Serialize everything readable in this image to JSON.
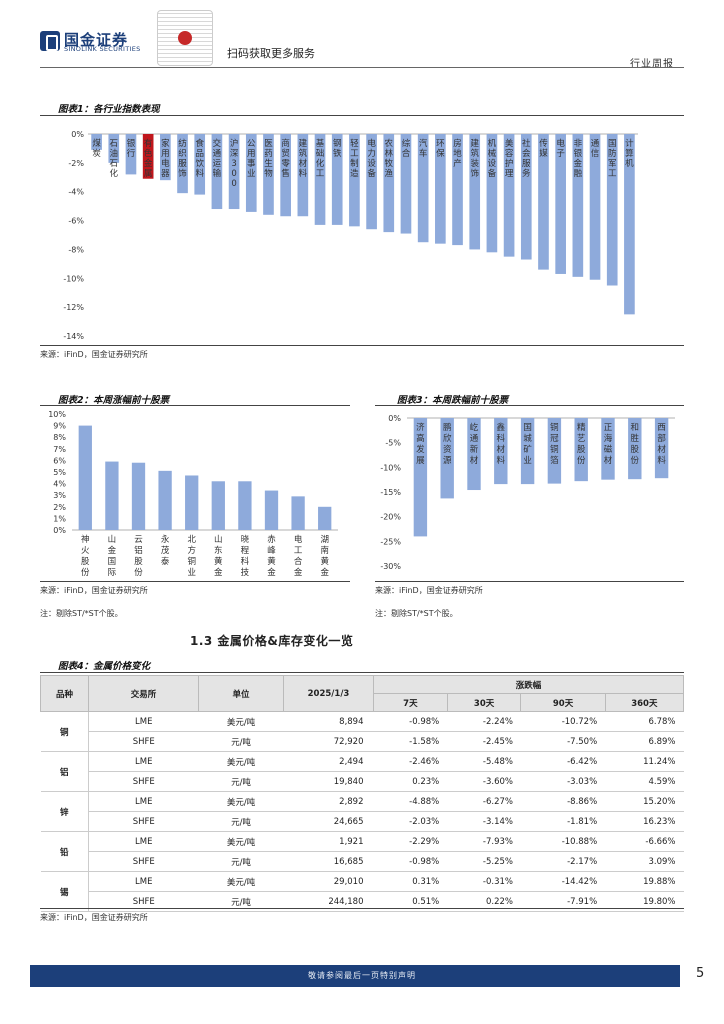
{
  "header": {
    "logo_cn": "国金证券",
    "logo_en": "SINOLINK SECURITIES",
    "qr_caption": "扫码获取更多服务",
    "doc_type": "行业周报"
  },
  "fig1": {
    "title": "图表1：各行业指数表现",
    "source": "来源：iFinD，国金证券研究所",
    "highlight_color": "#c0161c",
    "bar_color": "#8eaadb",
    "chart_data": {
      "type": "bar",
      "categories": [
        "煤炭",
        "石油石化",
        "银行",
        "有色金属",
        "家用电器",
        "纺织服饰",
        "食品饮料",
        "交通运输",
        "沪深300",
        "公用事业",
        "医药生物",
        "商贸零售",
        "建筑材料",
        "基础化工",
        "钢铁",
        "轻工制造",
        "电力设备",
        "农林牧渔",
        "综合",
        "汽车",
        "环保",
        "房地产",
        "建筑装饰",
        "机械设备",
        "美容护理",
        "社会服务",
        "传媒",
        "电子",
        "非银金融",
        "通信",
        "国防军工",
        "计算机"
      ],
      "values": [
        -1.1,
        -2.0,
        -2.8,
        -3.1,
        -3.2,
        -4.1,
        -4.2,
        -5.2,
        -5.2,
        -5.4,
        -5.6,
        -5.7,
        -5.7,
        -6.3,
        -6.3,
        -6.4,
        -6.6,
        -6.8,
        -6.9,
        -7.5,
        -7.6,
        -7.7,
        -8.0,
        -8.2,
        -8.5,
        -8.7,
        -9.4,
        -9.7,
        -9.9,
        -10.1,
        -10.5,
        -12.5
      ],
      "highlight_index": 3,
      "yticks": [
        "0%",
        "-2%",
        "-4%",
        "-6%",
        "-8%",
        "-10%",
        "-12%",
        "-14%"
      ],
      "ylim": [
        -14,
        0
      ]
    }
  },
  "fig2": {
    "title": "图表2：本周涨幅前十股票",
    "source": "来源：iFinD，国金证券研究所",
    "note": "注：剔除ST/*ST个股。",
    "chart_data": {
      "type": "bar",
      "categories": [
        "神火股份",
        "山金国际",
        "云铝股份",
        "永茂泰",
        "北方铜业",
        "山东黄金",
        "晓程科技",
        "赤峰黄金",
        "电工合金",
        "湖南黄金"
      ],
      "values": [
        9.0,
        5.9,
        5.8,
        5.1,
        4.7,
        4.2,
        4.2,
        3.4,
        2.9,
        2.0
      ],
      "yticks": [
        "10%",
        "9%",
        "8%",
        "7%",
        "6%",
        "5%",
        "4%",
        "3%",
        "2%",
        "1%",
        "0%"
      ],
      "ylim": [
        0,
        10
      ]
    }
  },
  "fig3": {
    "title": "图表3：本周跌幅前十股票",
    "source": "来源：iFinD，国金证券研究所",
    "note": "注：剔除ST/*ST个股。",
    "chart_data": {
      "type": "bar",
      "categories": [
        "济高发展",
        "鹏欣资源",
        "屹通新材",
        "鑫科材料",
        "国城矿业",
        "铜冠铜箔",
        "精艺股份",
        "正海磁材",
        "和胜股份",
        "西部材料"
      ],
      "values": [
        -24.0,
        -16.3,
        -14.6,
        -13.4,
        -13.4,
        -13.3,
        -12.8,
        -12.5,
        -12.4,
        -12.2
      ],
      "yticks": [
        "0%",
        "-5%",
        "-10%",
        "-15%",
        "-20%",
        "-25%",
        "-30%"
      ],
      "ylim": [
        -30,
        0
      ]
    }
  },
  "section": {
    "title": "1.3 金属价格&库存变化一览"
  },
  "fig4": {
    "title": "图表4：金属价格变化",
    "source": "来源：iFinD，国金证券研究所",
    "headers": {
      "product": "品种",
      "exchange": "交易所",
      "unit": "单位",
      "date": "2025/1/3",
      "change": "涨跌幅",
      "d7": "7天",
      "d30": "30天",
      "d90": "90天",
      "d360": "360天"
    },
    "rows": [
      {
        "product": "铜",
        "exchange": "LME",
        "unit": "美元/吨",
        "price": "8,894",
        "d7": "-0.98%",
        "d30": "-2.24%",
        "d90": "-10.72%",
        "d360": "6.78%"
      },
      {
        "product": "",
        "exchange": "SHFE",
        "unit": "元/吨",
        "price": "72,920",
        "d7": "-1.58%",
        "d30": "-2.45%",
        "d90": "-7.50%",
        "d360": "6.89%"
      },
      {
        "product": "铝",
        "exchange": "LME",
        "unit": "美元/吨",
        "price": "2,494",
        "d7": "-2.46%",
        "d30": "-5.48%",
        "d90": "-6.42%",
        "d360": "11.24%"
      },
      {
        "product": "",
        "exchange": "SHFE",
        "unit": "元/吨",
        "price": "19,840",
        "d7": "0.23%",
        "d30": "-3.60%",
        "d90": "-3.03%",
        "d360": "4.59%"
      },
      {
        "product": "锌",
        "exchange": "LME",
        "unit": "美元/吨",
        "price": "2,892",
        "d7": "-4.88%",
        "d30": "-6.27%",
        "d90": "-8.86%",
        "d360": "15.20%"
      },
      {
        "product": "",
        "exchange": "SHFE",
        "unit": "元/吨",
        "price": "24,665",
        "d7": "-2.03%",
        "d30": "-3.14%",
        "d90": "-1.81%",
        "d360": "16.23%"
      },
      {
        "product": "铅",
        "exchange": "LME",
        "unit": "美元/吨",
        "price": "1,921",
        "d7": "-2.29%",
        "d30": "-7.93%",
        "d90": "-10.88%",
        "d360": "-6.66%"
      },
      {
        "product": "",
        "exchange": "SHFE",
        "unit": "元/吨",
        "price": "16,685",
        "d7": "-0.98%",
        "d30": "-5.25%",
        "d90": "-2.17%",
        "d360": "3.09%"
      },
      {
        "product": "锡",
        "exchange": "LME",
        "unit": "美元/吨",
        "price": "29,010",
        "d7": "0.31%",
        "d30": "-0.31%",
        "d90": "-14.42%",
        "d360": "19.88%"
      },
      {
        "product": "",
        "exchange": "SHFE",
        "unit": "元/吨",
        "price": "244,180",
        "d7": "0.51%",
        "d30": "0.22%",
        "d90": "-7.91%",
        "d360": "19.80%"
      }
    ]
  },
  "footer": {
    "disclaimer": "敬请参阅最后一页特别声明",
    "page": "5"
  }
}
